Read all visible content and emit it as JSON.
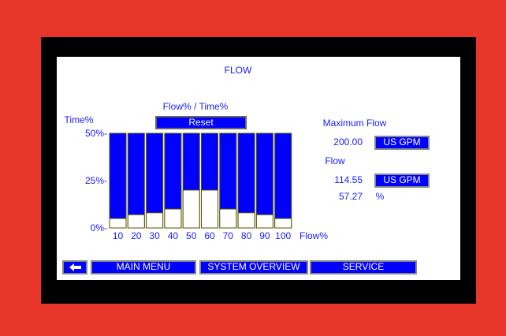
{
  "screen": {
    "title": "FLOW"
  },
  "chart_data": {
    "type": "bar",
    "title": "Flow% / Time%",
    "y_label": "Time%",
    "x_label": "Flow%",
    "categories": [
      "10",
      "20",
      "30",
      "40",
      "50",
      "60",
      "70",
      "80",
      "90",
      "100"
    ],
    "values": [
      5,
      7,
      8,
      10,
      20,
      20,
      10,
      8,
      7,
      5
    ],
    "color": "#ffffff",
    "background_color": "#0000ff",
    "ylim": [
      0,
      50
    ],
    "yticks": [
      {
        "value": 0,
        "label": "0%-"
      },
      {
        "value": 25,
        "label": "25%-"
      },
      {
        "value": 50,
        "label": "50%-"
      }
    ]
  },
  "reset_button": "Reset",
  "readings": {
    "max_flow_label": "Maximum Flow",
    "max_flow_value": "200.00",
    "max_flow_unit": "US GPM",
    "flow_label": "Flow",
    "flow_value": "114.55",
    "flow_unit": "US GPM",
    "flow_percent": "57.27",
    "percent_unit": "%"
  },
  "nav": [
    "MAIN MENU",
    "SYSTEM OVERVIEW",
    "SERVICE"
  ]
}
